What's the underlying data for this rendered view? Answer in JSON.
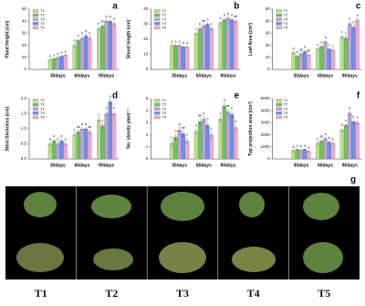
{
  "chart_data": [
    {
      "type": "bar",
      "panel": "a",
      "y_label": "Plant Height (cm)",
      "categories": [
        "30days",
        "60days",
        "90days"
      ],
      "ylim": [
        0,
        50
      ],
      "yticks": [
        0,
        10,
        20,
        30,
        40,
        50
      ],
      "series": [
        {
          "name": "T1",
          "color": "#b7e08a",
          "values": [
            8,
            20,
            34
          ],
          "errors": [
            1,
            2,
            2
          ],
          "letters": [
            "a",
            "d",
            "b"
          ]
        },
        {
          "name": "T2",
          "color": "#6fc25a",
          "values": [
            9,
            24,
            36
          ],
          "errors": [
            1,
            2,
            2
          ],
          "letters": [
            "a",
            "c",
            "ab"
          ]
        },
        {
          "name": "T3",
          "color": "#b9a3e3",
          "values": [
            10,
            26,
            40
          ],
          "errors": [
            1,
            2,
            2
          ],
          "letters": [
            "a",
            "b",
            "a"
          ]
        },
        {
          "name": "T4",
          "color": "#6f8fe8",
          "values": [
            11,
            28,
            40
          ],
          "errors": [
            1,
            2,
            2
          ],
          "letters": [
            "a",
            "a",
            "a"
          ]
        },
        {
          "name": "T5",
          "color": "#f2a7c8",
          "values": [
            12,
            26,
            38
          ],
          "errors": [
            1,
            2,
            2
          ],
          "letters": [
            "a",
            "b",
            "a"
          ]
        }
      ]
    },
    {
      "type": "bar",
      "panel": "b",
      "y_label": "Shoot length (cm)",
      "categories": [
        "30days",
        "60days",
        "90days"
      ],
      "ylim": [
        0,
        40
      ],
      "yticks": [
        0,
        10,
        20,
        30,
        40
      ],
      "series": [
        {
          "name": "T1",
          "color": "#b7e08a",
          "values": [
            16,
            24,
            31
          ],
          "errors": [
            1,
            1.5,
            1.5
          ],
          "letters": [
            "a",
            "c",
            "b"
          ]
        },
        {
          "name": "T2",
          "color": "#6fc25a",
          "values": [
            16,
            27,
            33
          ],
          "errors": [
            1,
            1.5,
            1.5
          ],
          "letters": [
            "a",
            "b",
            "a"
          ]
        },
        {
          "name": "T3",
          "color": "#b9a3e3",
          "values": [
            16,
            29,
            34
          ],
          "errors": [
            1,
            1.5,
            1.5
          ],
          "letters": [
            "a",
            "ab",
            "a"
          ]
        },
        {
          "name": "T4",
          "color": "#6f8fe8",
          "values": [
            15,
            30,
            33
          ],
          "errors": [
            1,
            1.5,
            1.5
          ],
          "letters": [
            "a",
            "a",
            "a"
          ]
        },
        {
          "name": "T5",
          "color": "#f2a7c8",
          "values": [
            15,
            27,
            32
          ],
          "errors": [
            1,
            1.5,
            1.5
          ],
          "letters": [
            "a",
            "b",
            "ab"
          ]
        }
      ]
    },
    {
      "type": "bar",
      "panel": "c",
      "y_label": "Leaf Area (cm²)",
      "categories": [
        "30days",
        "60days",
        "90days"
      ],
      "ylim": [
        0,
        50
      ],
      "yticks": [
        0,
        10,
        20,
        30,
        40,
        50
      ],
      "series": [
        {
          "name": "T1",
          "color": "#b7e08a",
          "values": [
            14,
            17,
            27
          ],
          "errors": [
            1.5,
            1.5,
            2
          ],
          "letters": [
            "a",
            "c",
            "c"
          ]
        },
        {
          "name": "T2",
          "color": "#6fc25a",
          "values": [
            11,
            19,
            26
          ],
          "errors": [
            1.5,
            1.5,
            2
          ],
          "letters": [
            "b",
            "b",
            "c"
          ]
        },
        {
          "name": "T3",
          "color": "#b9a3e3",
          "values": [
            13,
            23,
            38
          ],
          "errors": [
            1.5,
            1.5,
            2
          ],
          "letters": [
            "ab",
            "a",
            "b"
          ]
        },
        {
          "name": "T4",
          "color": "#6f8fe8",
          "values": [
            15,
            17,
            35
          ],
          "errors": [
            1.5,
            1.5,
            2
          ],
          "letters": [
            "a",
            "c",
            "b"
          ]
        },
        {
          "name": "T5",
          "color": "#f2a7c8",
          "values": [
            12,
            16,
            41
          ],
          "errors": [
            1.5,
            1.5,
            2
          ],
          "letters": [
            "ab",
            "c",
            "a"
          ]
        }
      ]
    },
    {
      "type": "bar",
      "panel": "d",
      "y_label": "Stem thickness (cm)",
      "categories": [
        "30days",
        "60days",
        "90days"
      ],
      "ylim": [
        0,
        2
      ],
      "yticks": [
        {
          "value": 0,
          "label": "0.0"
        },
        {
          "value": 0.5,
          "label": "0.5"
        },
        {
          "value": 1,
          "label": "1.0"
        },
        {
          "value": 1.5,
          "label": "1.5"
        },
        {
          "value": 2,
          "label": "2.0"
        }
      ],
      "series": [
        {
          "name": "T1",
          "color": "#b7e08a",
          "values": [
            0.5,
            0.8,
            1.3
          ],
          "errors": [
            0.08,
            0.08,
            0.1
          ],
          "letters": [
            "a",
            "b",
            "c"
          ]
        },
        {
          "name": "T2",
          "color": "#6fc25a",
          "values": [
            0.6,
            0.9,
            1.1
          ],
          "errors": [
            0.08,
            0.08,
            0.1
          ],
          "letters": [
            "a",
            "ab",
            "c"
          ]
        },
        {
          "name": "T3",
          "color": "#b9a3e3",
          "values": [
            0.5,
            1.0,
            1.5
          ],
          "errors": [
            0.08,
            0.08,
            0.1
          ],
          "letters": [
            "a",
            "a",
            "b"
          ]
        },
        {
          "name": "T4",
          "color": "#6f8fe8",
          "values": [
            0.6,
            1.0,
            1.9
          ],
          "errors": [
            0.08,
            0.08,
            0.1
          ],
          "letters": [
            "a",
            "a",
            "a"
          ]
        },
        {
          "name": "T5",
          "color": "#f2a7c8",
          "values": [
            0.5,
            0.9,
            1.5
          ],
          "errors": [
            0.08,
            0.08,
            0.1
          ],
          "letters": [
            "a",
            "ab",
            "b"
          ]
        }
      ]
    },
    {
      "type": "bar",
      "panel": "e",
      "y_label": "No. shoots plant⁻¹",
      "categories": [
        "30days",
        "60days",
        "90days"
      ],
      "ylim": [
        0,
        5
      ],
      "yticks": [
        0,
        1,
        2,
        3,
        4,
        5
      ],
      "series": [
        {
          "name": "T1",
          "color": "#b7e08a",
          "values": [
            1.3,
            2.3,
            3.3
          ],
          "errors": [
            0.3,
            0.3,
            0.3
          ],
          "letters": [
            "c",
            "c",
            "c"
          ]
        },
        {
          "name": "T2",
          "color": "#6fc25a",
          "values": [
            1.8,
            3.1,
            4.4
          ],
          "errors": [
            0.3,
            0.3,
            0.3
          ],
          "letters": [
            "b",
            "ab",
            "a"
          ]
        },
        {
          "name": "T3",
          "color": "#b9a3e3",
          "values": [
            2.4,
            3.3,
            3.9
          ],
          "errors": [
            0.3,
            0.3,
            0.3
          ],
          "letters": [
            "a",
            "a",
            "ab"
          ]
        },
        {
          "name": "T4",
          "color": "#6f8fe8",
          "values": [
            2.1,
            2.8,
            3.7
          ],
          "errors": [
            0.3,
            0.3,
            0.3
          ],
          "letters": [
            "ab",
            "b",
            "b"
          ]
        },
        {
          "name": "T5",
          "color": "#f2a7c8",
          "values": [
            1.5,
            2.0,
            2.6
          ],
          "errors": [
            0.3,
            0.3,
            0.3
          ],
          "letters": [
            "c",
            "c",
            "d"
          ]
        }
      ]
    },
    {
      "type": "bar",
      "panel": "f",
      "y_label": "Top projection area (cm²)",
      "categories": [
        "30days",
        "60days",
        "90days"
      ],
      "ylim": [
        0,
        5000
      ],
      "yticks": [
        0,
        1000,
        2000,
        3000,
        4000,
        5000
      ],
      "series": [
        {
          "name": "T1",
          "color": "#b7e08a",
          "values": [
            700,
            1300,
            2400
          ],
          "errors": [
            100,
            150,
            200
          ],
          "letters": [
            "a",
            "b",
            "d"
          ]
        },
        {
          "name": "T2",
          "color": "#6fc25a",
          "values": [
            800,
            1500,
            2800
          ],
          "errors": [
            100,
            150,
            200
          ],
          "letters": [
            "a",
            "ab",
            "c"
          ]
        },
        {
          "name": "T3",
          "color": "#b9a3e3",
          "values": [
            750,
            1700,
            3800
          ],
          "errors": [
            100,
            150,
            200
          ],
          "letters": [
            "a",
            "a",
            "a"
          ]
        },
        {
          "name": "T4",
          "color": "#6f8fe8",
          "values": [
            800,
            1400,
            3100
          ],
          "errors": [
            100,
            150,
            200
          ],
          "letters": [
            "a",
            "b",
            "b"
          ]
        },
        {
          "name": "T5",
          "color": "#f2a7c8",
          "values": [
            650,
            1300,
            3000
          ],
          "errors": [
            100,
            150,
            200
          ],
          "letters": [
            "a",
            "b",
            "b"
          ]
        }
      ]
    }
  ],
  "photos": {
    "panel": "g",
    "captions": [
      "T1",
      "T2",
      "T3",
      "T4",
      "T5"
    ]
  }
}
